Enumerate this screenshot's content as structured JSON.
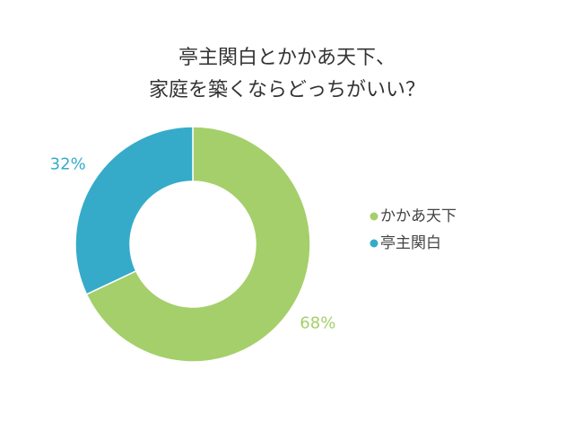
{
  "chart_data": {
    "type": "donut",
    "title": [
      "亭主関白とかかあ天下、",
      "家庭を築くならどっちがいい？"
    ],
    "categories": [
      "かかあ天下",
      "亭主関白"
    ],
    "values": [
      68,
      32
    ],
    "value_labels": [
      "68%",
      "32%"
    ],
    "colors": [
      "#a5cf6a",
      "#35abc9"
    ],
    "legend": "right"
  }
}
